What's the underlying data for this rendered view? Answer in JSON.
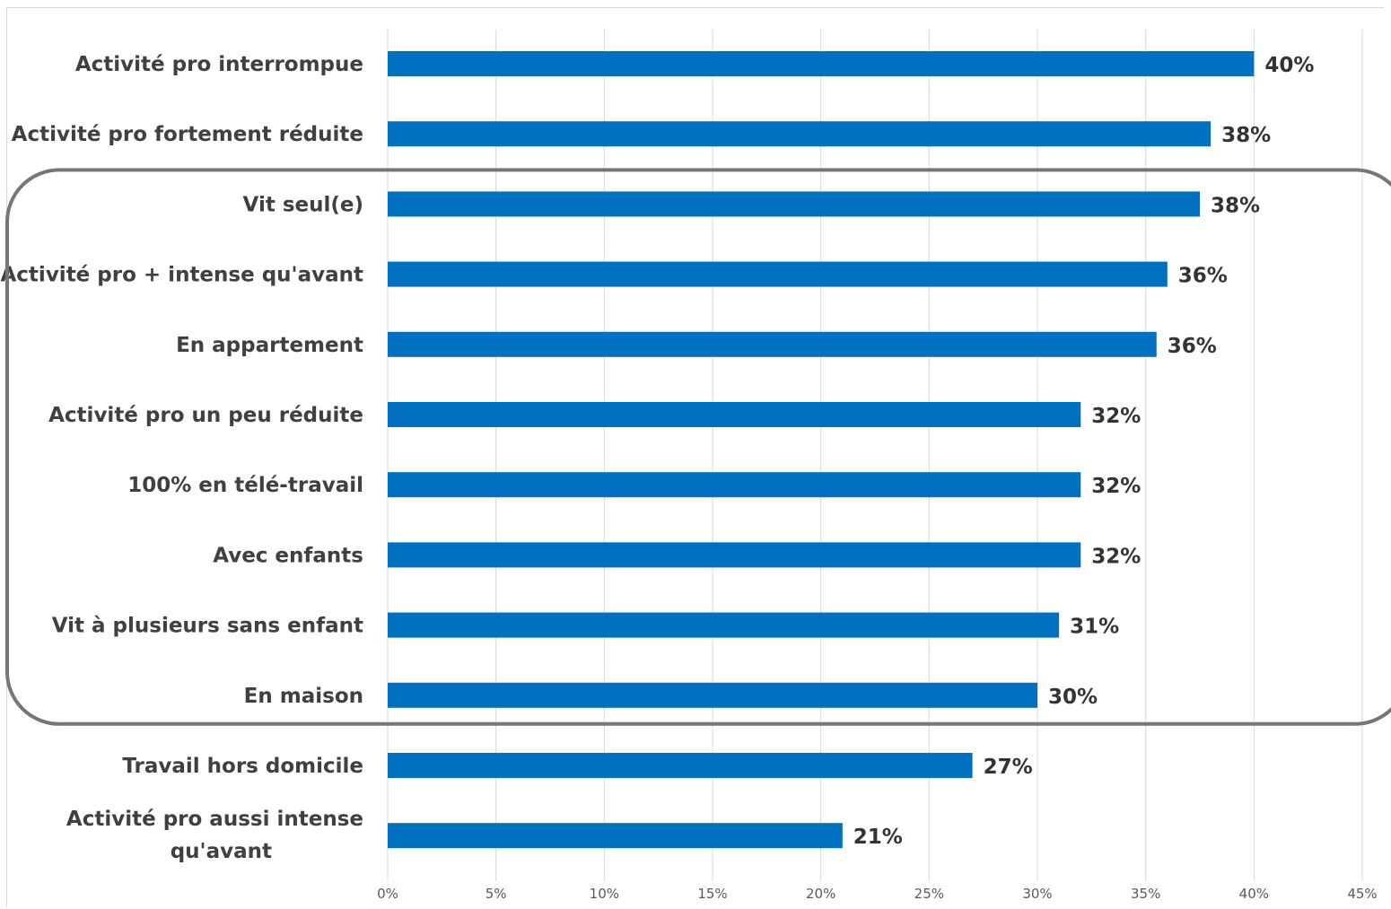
{
  "chart_data": {
    "type": "bar",
    "orientation": "horizontal",
    "categories": [
      "Activité pro interrompue",
      "Activité pro fortement réduite",
      "Vit seul(e)",
      "Activité pro + intense qu'avant",
      "En appartement",
      "Activité pro un peu réduite",
      "100% en télé-travail",
      "Avec enfants",
      "Vit à plusieurs sans enfant",
      "En maison",
      "Travail hors domicile",
      "Activité pro aussi intense qu'avant"
    ],
    "values": [
      40,
      38,
      37.5,
      36,
      35.5,
      32,
      32,
      32,
      31,
      30,
      27,
      21
    ],
    "data_labels": [
      "40%",
      "38%",
      "38%",
      "36%",
      "36%",
      "32%",
      "32%",
      "32%",
      "31%",
      "30%",
      "27%",
      "21%"
    ],
    "xlim": [
      0,
      45
    ],
    "xticks": [
      0,
      5,
      10,
      15,
      20,
      25,
      30,
      35,
      40,
      45
    ],
    "xtick_labels": [
      "0%",
      "5%",
      "10%",
      "15%",
      "20%",
      "25%",
      "30%",
      "35%",
      "40%",
      "45%"
    ],
    "title": "",
    "xlabel": "",
    "ylabel": "",
    "grid": "vertical",
    "legend": "none",
    "highlight_box": {
      "from_index": 2,
      "to_index": 9
    },
    "colors": {
      "bar": "#0070C0",
      "grid": "#d9d9d9",
      "highlight_border": "#767676",
      "category_text": "#404040",
      "value_text": "#333333",
      "tick_text": "#595959"
    }
  }
}
